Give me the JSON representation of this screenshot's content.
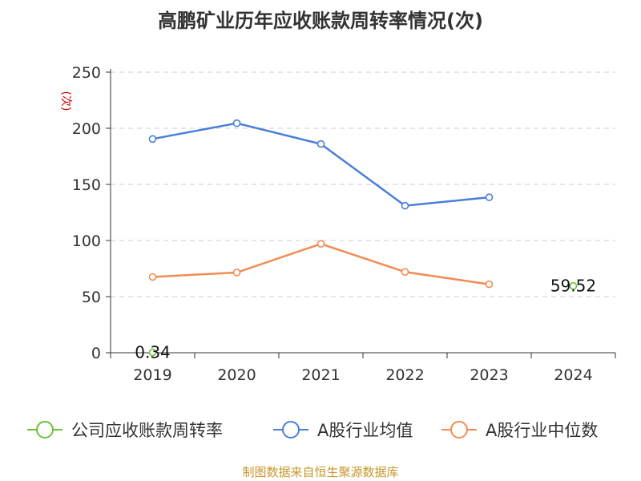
{
  "chart_data": {
    "type": "line",
    "title": "高鹏矿业历年应收账款周转率情况(次)",
    "ylabel": "(次)",
    "categories": [
      "2019",
      "2020",
      "2021",
      "2022",
      "2023",
      "2024"
    ],
    "ylim": [
      0,
      250
    ],
    "yticks": [
      0,
      50,
      100,
      150,
      200,
      250
    ],
    "grid": true,
    "legend_position": "bottom",
    "series": [
      {
        "name": "公司应收账款周转率",
        "color": "#6cc03a",
        "values": [
          0.34,
          null,
          null,
          null,
          null,
          59.52
        ],
        "labels": [
          "0.34",
          null,
          null,
          null,
          null,
          "59.52"
        ]
      },
      {
        "name": "A股行业均值",
        "color": "#4b7ed9",
        "values": [
          190.5,
          204.5,
          186.0,
          131.0,
          138.5,
          null
        ]
      },
      {
        "name": "A股行业中位数",
        "color": "#f28c52",
        "values": [
          67.5,
          71.5,
          97.0,
          72.0,
          61.0,
          null
        ]
      }
    ]
  },
  "footer": {
    "source": "制图数据来自恒生聚源数据库"
  }
}
